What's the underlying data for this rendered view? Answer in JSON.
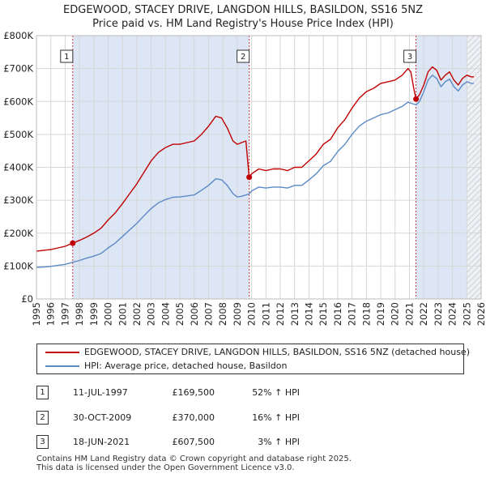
{
  "title": {
    "line1": "EDGEWOOD, STACEY DRIVE, LANGDON HILLS, BASILDON, SS16 5NZ",
    "line2": "Price paid vs. HM Land Registry's House Price Index (HPI)"
  },
  "colors": {
    "property_series": "#c00000",
    "hpi_series": "#5b8ac6",
    "shade_band": "#dde6f5",
    "sale_line": "#cc3333"
  },
  "legend": {
    "property_label": "EDGEWOOD, STACEY DRIVE, LANGDON HILLS, BASILDON, SS16 5NZ (detached house)",
    "hpi_label": "HPI: Average price, detached house, Basildon"
  },
  "transactions": [
    {
      "num": "1",
      "date": "11-JUL-1997",
      "price": "£169,500",
      "hpi": "52% ↑ HPI"
    },
    {
      "num": "2",
      "date": "30-OCT-2009",
      "price": "£370,000",
      "hpi": "16% ↑ HPI"
    },
    {
      "num": "3",
      "date": "18-JUN-2021",
      "price": "£607,500",
      "hpi": "3% ↑ HPI"
    }
  ],
  "footer": {
    "line1": "Contains HM Land Registry data © Crown copyright and database right 2025.",
    "line2": "This data is licensed under the Open Government Licence v3.0."
  },
  "chart_data": {
    "type": "line",
    "title": "EDGEWOOD, STACEY DRIVE, LANGDON HILLS, BASILDON, SS16 5NZ",
    "subtitle": "Price paid vs. HM Land Registry's House Price Index (HPI)",
    "xlabel": "",
    "ylabel": "",
    "xlim": [
      1995,
      2026
    ],
    "ylim": [
      0,
      800000
    ],
    "x_ticks": [
      1995,
      1996,
      1997,
      1998,
      1999,
      2000,
      2001,
      2002,
      2003,
      2004,
      2005,
      2006,
      2007,
      2008,
      2009,
      2010,
      2011,
      2012,
      2013,
      2014,
      2015,
      2016,
      2017,
      2018,
      2019,
      2020,
      2021,
      2022,
      2023,
      2024,
      2025,
      2026
    ],
    "y_ticks": [
      {
        "value": 0,
        "label": "£0"
      },
      {
        "value": 100000,
        "label": "£100K"
      },
      {
        "value": 200000,
        "label": "£200K"
      },
      {
        "value": 300000,
        "label": "£300K"
      },
      {
        "value": 400000,
        "label": "£400K"
      },
      {
        "value": 500000,
        "label": "£500K"
      },
      {
        "value": 600000,
        "label": "£600K"
      },
      {
        "value": 700000,
        "label": "£700K"
      },
      {
        "value": 800000,
        "label": "£800K"
      }
    ],
    "grid": true,
    "forecast_from": 2025.0,
    "series": [
      {
        "name": "EDGEWOOD, STACEY DRIVE, LANGDON HILLS, BASILDON, SS16 5NZ (detached house)",
        "x": [
          1995.0,
          1995.5,
          1996.0,
          1996.5,
          1997.0,
          1997.53,
          1998.0,
          1998.5,
          1999.0,
          1999.5,
          2000.0,
          2000.5,
          2001.0,
          2001.5,
          2002.0,
          2002.5,
          2003.0,
          2003.5,
          2004.0,
          2004.5,
          2005.0,
          2005.5,
          2006.0,
          2006.5,
          2007.0,
          2007.5,
          2007.9,
          2008.3,
          2008.7,
          2009.0,
          2009.3,
          2009.6,
          2009.83,
          2010.0,
          2010.5,
          2011.0,
          2011.5,
          2012.0,
          2012.5,
          2013.0,
          2013.5,
          2014.0,
          2014.5,
          2015.0,
          2015.5,
          2016.0,
          2016.5,
          2017.0,
          2017.5,
          2018.0,
          2018.5,
          2019.0,
          2019.5,
          2020.0,
          2020.5,
          2020.9,
          2021.1,
          2021.3,
          2021.46,
          2021.7,
          2022.0,
          2022.3,
          2022.6,
          2022.9,
          2023.2,
          2023.5,
          2023.8,
          2024.1,
          2024.4,
          2024.7,
          2025.0,
          2025.3,
          2025.5
        ],
        "values": [
          145000,
          148000,
          150000,
          155000,
          160000,
          169500,
          178000,
          188000,
          200000,
          215000,
          240000,
          262000,
          290000,
          320000,
          350000,
          385000,
          420000,
          445000,
          460000,
          470000,
          470000,
          475000,
          480000,
          500000,
          525000,
          555000,
          550000,
          520000,
          480000,
          470000,
          475000,
          480000,
          370000,
          380000,
          395000,
          390000,
          395000,
          395000,
          390000,
          400000,
          400000,
          420000,
          440000,
          470000,
          485000,
          520000,
          545000,
          580000,
          610000,
          630000,
          640000,
          655000,
          660000,
          665000,
          680000,
          700000,
          690000,
          640000,
          607500,
          620000,
          650000,
          690000,
          705000,
          695000,
          665000,
          680000,
          690000,
          665000,
          650000,
          670000,
          680000,
          675000,
          675000
        ]
      },
      {
        "name": "HPI: Average price, detached house, Basildon",
        "x": [
          1995.0,
          1995.5,
          1996.0,
          1996.5,
          1997.0,
          1997.53,
          1998.0,
          1998.5,
          1999.0,
          1999.5,
          2000.0,
          2000.5,
          2001.0,
          2001.5,
          2002.0,
          2002.5,
          2003.0,
          2003.5,
          2004.0,
          2004.5,
          2005.0,
          2005.5,
          2006.0,
          2006.5,
          2007.0,
          2007.5,
          2007.9,
          2008.3,
          2008.7,
          2009.0,
          2009.3,
          2009.6,
          2009.83,
          2010.0,
          2010.5,
          2011.0,
          2011.5,
          2012.0,
          2012.5,
          2013.0,
          2013.5,
          2014.0,
          2014.5,
          2015.0,
          2015.5,
          2016.0,
          2016.5,
          2017.0,
          2017.5,
          2018.0,
          2018.5,
          2019.0,
          2019.5,
          2020.0,
          2020.5,
          2020.9,
          2021.1,
          2021.3,
          2021.46,
          2021.7,
          2022.0,
          2022.3,
          2022.6,
          2022.9,
          2023.2,
          2023.5,
          2023.8,
          2024.1,
          2024.4,
          2024.7,
          2025.0,
          2025.3,
          2025.5
        ],
        "values": [
          96000,
          97000,
          99000,
          102000,
          105000,
          111500,
          117000,
          124000,
          130000,
          138000,
          155000,
          170000,
          190000,
          210000,
          230000,
          253000,
          275000,
          292000,
          302000,
          309000,
          310000,
          313000,
          316000,
          330000,
          345000,
          365000,
          362000,
          345000,
          320000,
          310000,
          312000,
          316000,
          319000,
          328000,
          340000,
          337000,
          340000,
          340000,
          337000,
          345000,
          345000,
          362000,
          380000,
          405000,
          418000,
          448000,
          470000,
          500000,
          525000,
          540000,
          550000,
          560000,
          565000,
          575000,
          585000,
          598000,
          595000,
          592000,
          589800,
          600000,
          630000,
          665000,
          680000,
          670000,
          645000,
          660000,
          668000,
          645000,
          632000,
          650000,
          660000,
          655000,
          655000
        ]
      }
    ],
    "sales": [
      {
        "label": "1",
        "x": 1997.53,
        "value": 169500
      },
      {
        "label": "2",
        "x": 2009.83,
        "value": 370000
      },
      {
        "label": "3",
        "x": 2021.46,
        "value": 607500
      }
    ]
  }
}
